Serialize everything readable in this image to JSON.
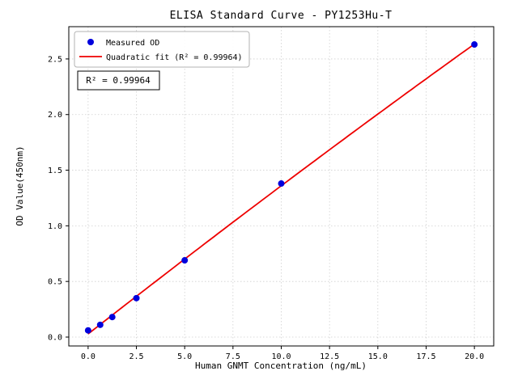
{
  "chart_data": {
    "type": "scatter",
    "title": "ELISA Standard Curve - PY1253Hu-T",
    "xlabel": "Human GNMT Concentration (ng/mL)",
    "ylabel": "OD Value(450nm)",
    "x": [
      0.0,
      0.625,
      1.25,
      2.5,
      5.0,
      10.0,
      20.0
    ],
    "y": [
      0.06,
      0.11,
      0.18,
      0.35,
      0.69,
      1.38,
      2.63
    ],
    "fit": {
      "type": "quadratic",
      "x_range": [
        0.0,
        20.0
      ],
      "r_squared": 0.99964
    },
    "legend": [
      {
        "label": "Measured OD",
        "marker": "dot"
      },
      {
        "label": "Quadratic fit (R² = 0.99964)",
        "marker": "line"
      }
    ],
    "annotation": "R² = 0.99964",
    "xlim": [
      -1.0,
      21.0
    ],
    "ylim": [
      -0.08,
      2.79
    ],
    "xtick_values": [
      0,
      2.5,
      5,
      7.5,
      10,
      12.5,
      15,
      17.5,
      20
    ],
    "xtick_labels": [
      "0.0",
      "2.5",
      "5.0",
      "7.5",
      "10.0",
      "12.5",
      "15.0",
      "17.5",
      "20.0"
    ],
    "ytick_values": [
      0,
      0.5,
      1,
      1.5,
      2,
      2.5
    ],
    "ytick_labels": [
      "0.0",
      "0.5",
      "1.0",
      "1.5",
      "2.0",
      "2.5"
    ],
    "grid": true,
    "legend_position": "upper left",
    "colors": {
      "points": "#0000dd",
      "fit_line": "#ee0000",
      "grid": "#cfcfcf",
      "axes": "#000000"
    }
  }
}
